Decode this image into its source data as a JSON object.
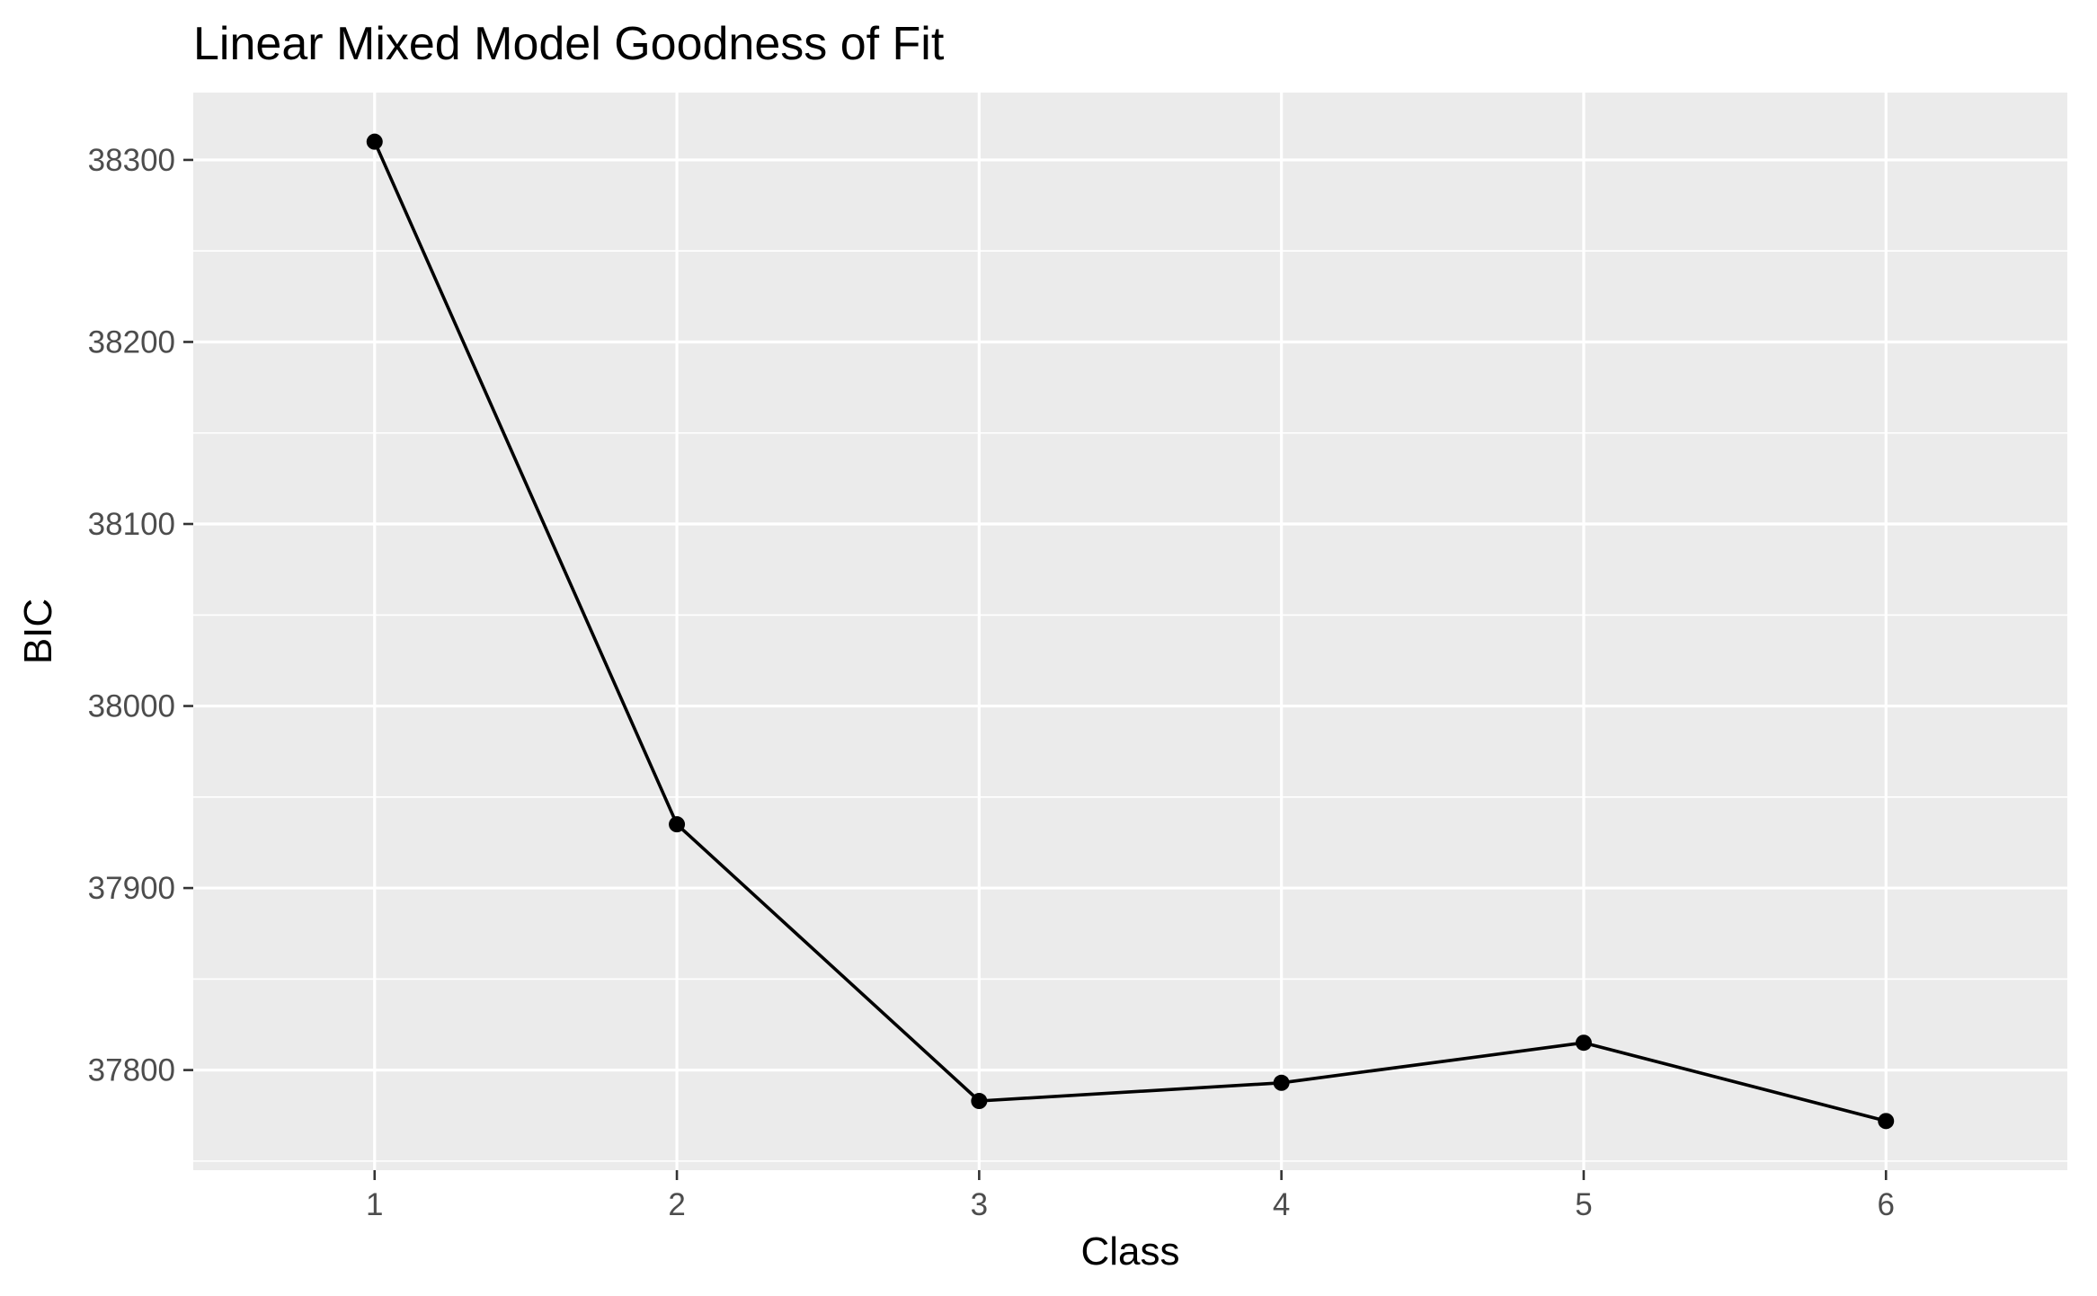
{
  "chart_data": {
    "type": "line",
    "title": "Linear Mixed Model Goodness of Fit",
    "xlabel": "Class",
    "ylabel": "BIC",
    "x": [
      1,
      2,
      3,
      4,
      5,
      6
    ],
    "y": [
      38310,
      37935,
      37783,
      37793,
      37815,
      37772
    ],
    "xlim": [
      0.4,
      6.6
    ],
    "ylim": [
      37745,
      38337
    ],
    "xticks": [
      1,
      2,
      3,
      4,
      5,
      6
    ],
    "yticks": [
      37800,
      37900,
      38000,
      38100,
      38200,
      38300
    ],
    "grid": true,
    "legend": "none",
    "colors": {
      "panel": "#ebebeb",
      "grid": "#ffffff",
      "line": "#000000",
      "point": "#000000"
    }
  }
}
